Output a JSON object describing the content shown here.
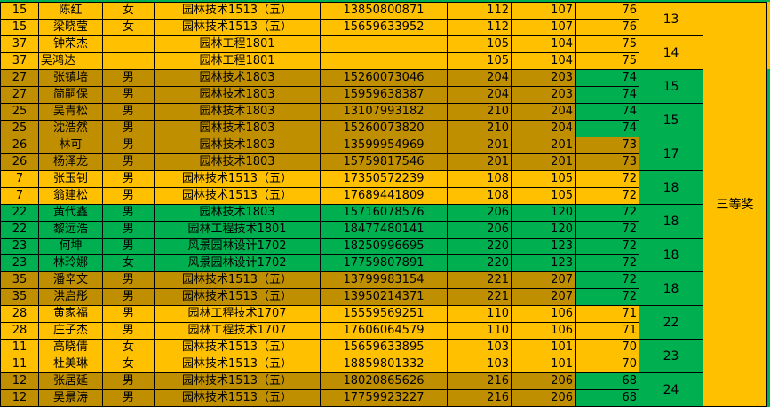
{
  "colors": {
    "yellow": "#FFC000",
    "dark_gold": "#BF8F00",
    "green": "#00B050"
  },
  "award": "三等奖",
  "rows": [
    {
      "no": "15",
      "name": "陈红",
      "gender": "女",
      "class": "园林技术1513（五）",
      "phone": "13850800871",
      "a": "112",
      "b": "107",
      "score": "76",
      "bg": "y",
      "sbg": "y"
    },
    {
      "no": "15",
      "name": "梁晓莹",
      "gender": "女",
      "class": "园林技术1513（五）",
      "phone": "15659633952",
      "a": "112",
      "b": "107",
      "score": "76",
      "bg": "y",
      "sbg": "y"
    },
    {
      "no": "37",
      "name": "钟荣杰",
      "gender": "",
      "class": "园林工程1801",
      "phone": "",
      "a": "105",
      "b": "104",
      "score": "75",
      "bg": "y",
      "sbg": "y"
    },
    {
      "no": "37",
      "name": "吴鸿达",
      "gender": "",
      "class": "园林工程1801",
      "phone": "",
      "a": "105",
      "b": "104",
      "score": "75",
      "bg": "y",
      "sbg": "y"
    },
    {
      "no": "27",
      "name": "张镇培",
      "gender": "男",
      "class": "园林技术1803",
      "phone": "15260073046",
      "a": "204",
      "b": "203",
      "score": "74",
      "bg": "d",
      "sbg": "g"
    },
    {
      "no": "27",
      "name": "简嗣保",
      "gender": "男",
      "class": "园林技术1803",
      "phone": "15959638387",
      "a": "204",
      "b": "203",
      "score": "74",
      "bg": "d",
      "sbg": "g"
    },
    {
      "no": "25",
      "name": "吴青松",
      "gender": "男",
      "class": "园林技术1803",
      "phone": "13107993182",
      "a": "210",
      "b": "204",
      "score": "74",
      "bg": "d",
      "sbg": "g"
    },
    {
      "no": "25",
      "name": "沈浩然",
      "gender": "男",
      "class": "园林技术1803",
      "phone": "15260073820",
      "a": "210",
      "b": "204",
      "score": "74",
      "bg": "d",
      "sbg": "g"
    },
    {
      "no": "26",
      "name": "林可",
      "gender": "男",
      "class": "园林技术1803",
      "phone": "13599954969",
      "a": "201",
      "b": "201",
      "score": "73",
      "bg": "d",
      "sbg": "d"
    },
    {
      "no": "26",
      "name": "杨泽龙",
      "gender": "男",
      "class": "园林技术1803",
      "phone": "15759817546",
      "a": "201",
      "b": "201",
      "score": "73",
      "bg": "d",
      "sbg": "d"
    },
    {
      "no": "7",
      "name": "张玉钊",
      "gender": "男",
      "class": "园林技术1513（五）",
      "phone": "17350572239",
      "a": "108",
      "b": "105",
      "score": "72",
      "bg": "y",
      "sbg": "y"
    },
    {
      "no": "7",
      "name": "翁建松",
      "gender": "男",
      "class": "园林技术1513（五）",
      "phone": "17689441809",
      "a": "108",
      "b": "105",
      "score": "72",
      "bg": "y",
      "sbg": "y"
    },
    {
      "no": "22",
      "name": "黄代鑫",
      "gender": "男",
      "class": "园林技术1803",
      "phone": "15716078576",
      "a": "206",
      "b": "120",
      "score": "72",
      "bg": "g",
      "sbg": "g"
    },
    {
      "no": "22",
      "name": "黎远浩",
      "gender": "男",
      "class": "园林工程技术1801",
      "phone": "18477480141",
      "a": "206",
      "b": "120",
      "score": "72",
      "bg": "g",
      "sbg": "g"
    },
    {
      "no": "23",
      "name": "何坤",
      "gender": "男",
      "class": "风景园林设计1702",
      "phone": "18250996695",
      "a": "220",
      "b": "123",
      "score": "72",
      "bg": "g",
      "sbg": "g"
    },
    {
      "no": "23",
      "name": "林玲娜",
      "gender": "女",
      "class": "风景园林设计1702",
      "phone": "17759807891",
      "a": "220",
      "b": "123",
      "score": "72",
      "bg": "g",
      "sbg": "g"
    },
    {
      "no": "35",
      "name": "潘辛文",
      "gender": "男",
      "class": "园林技术1513（五）",
      "phone": "13799983154",
      "a": "221",
      "b": "207",
      "score": "72",
      "bg": "d",
      "sbg": "g"
    },
    {
      "no": "35",
      "name": "洪启彤",
      "gender": "男",
      "class": "园林技术1513（五）",
      "phone": "13950214371",
      "a": "221",
      "b": "207",
      "score": "72",
      "bg": "d",
      "sbg": "g"
    },
    {
      "no": "28",
      "name": "黄家福",
      "gender": "男",
      "class": "园林工程技术1707",
      "phone": "15559569251",
      "a": "110",
      "b": "106",
      "score": "71",
      "bg": "y",
      "sbg": "y"
    },
    {
      "no": "28",
      "name": "庄子杰",
      "gender": "男",
      "class": "园林工程技术1707",
      "phone": "17606064579",
      "a": "110",
      "b": "106",
      "score": "71",
      "bg": "y",
      "sbg": "y"
    },
    {
      "no": "11",
      "name": "高晓倩",
      "gender": "女",
      "class": "园林技术1513（五）",
      "phone": "15659633895",
      "a": "103",
      "b": "101",
      "score": "70",
      "bg": "y",
      "sbg": "y"
    },
    {
      "no": "11",
      "name": "杜美琳",
      "gender": "女",
      "class": "园林技术1513（五）",
      "phone": "18859801332",
      "a": "103",
      "b": "101",
      "score": "70",
      "bg": "y",
      "sbg": "y"
    },
    {
      "no": "12",
      "name": "张居延",
      "gender": "男",
      "class": "园林技术1513（五）",
      "phone": "18020865626",
      "a": "216",
      "b": "206",
      "score": "68",
      "bg": "d",
      "sbg": "g"
    },
    {
      "no": "12",
      "name": "吴景涛",
      "gender": "男",
      "class": "园林技术1513（五）",
      "phone": "17759923227",
      "a": "216",
      "b": "206",
      "score": "68",
      "bg": "d",
      "sbg": "g"
    }
  ],
  "ranks": [
    {
      "value": "13",
      "bg": "y"
    },
    {
      "value": "14",
      "bg": "y"
    },
    {
      "value": "15",
      "bg": "g"
    },
    {
      "value": "15",
      "bg": "g"
    },
    {
      "value": "17",
      "bg": "g"
    },
    {
      "value": "18",
      "bg": "g"
    },
    {
      "value": "18",
      "bg": "g"
    },
    {
      "value": "18",
      "bg": "g"
    },
    {
      "value": "18",
      "bg": "g"
    },
    {
      "value": "22",
      "bg": "g"
    },
    {
      "value": "23",
      "bg": "g"
    },
    {
      "value": "24",
      "bg": "g"
    }
  ]
}
